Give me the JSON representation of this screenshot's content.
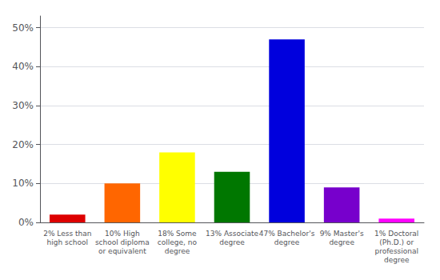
{
  "chart_data": {
    "type": "bar",
    "categories": [
      "2% Less than\nhigh school",
      "10% High\nschool diploma\nor equivalent",
      "18% Some\ncollege, no\ndegree",
      "13% Associate\ndegree",
      "47% Bachelor's\ndegree",
      "9% Master's\ndegree",
      "1% Doctoral\n(Ph.D.) or\nprofessional\ndegree"
    ],
    "values": [
      2,
      10,
      18,
      13,
      47,
      9,
      1
    ],
    "colors": [
      "#dd0000",
      "#ff6600",
      "#ffff00",
      "#007700",
      "#0000dd",
      "#7700cc",
      "#ff00ff"
    ],
    "ylim": [
      0,
      53
    ],
    "yticks": [
      {
        "value": 0,
        "label": "0%"
      },
      {
        "value": 10,
        "label": "10%"
      },
      {
        "value": 20,
        "label": "20%"
      },
      {
        "value": 30,
        "label": "30%"
      },
      {
        "value": 40,
        "label": "40%"
      },
      {
        "value": 50,
        "label": "50%"
      }
    ],
    "grid": true
  }
}
